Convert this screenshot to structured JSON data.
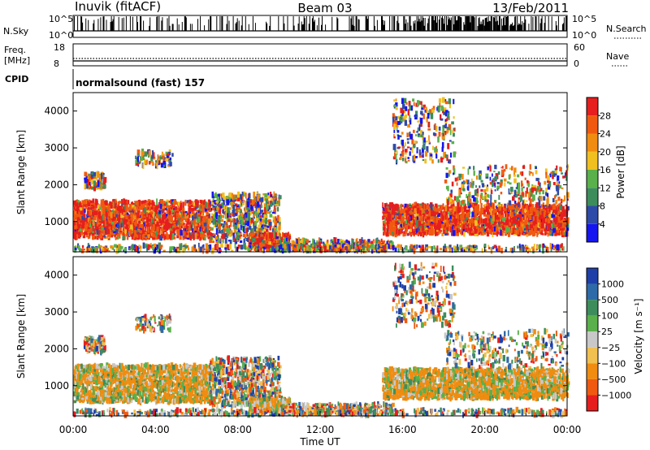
{
  "header": {
    "station": "Inuvik (fitACF)",
    "beam": "Beam 03",
    "date": "13/Feb/2011"
  },
  "side_labels": {
    "nsky": "N.Sky",
    "nsearch": "N.Search",
    "freq_line1": "Freq.",
    "freq_line2": "[MHz]",
    "nave": "Nave",
    "cpid": "CPID"
  },
  "cpid_value": "normalsound (fast) 157",
  "nsky_ticks": [
    "10^5",
    "10^0"
  ],
  "freq_ticks": [
    "18",
    "8"
  ],
  "nave_ticks": [
    "60",
    "0"
  ],
  "colors": {
    "power": [
      "#1515f0",
      "#2e4aa8",
      "#3d8d5c",
      "#5ab04b",
      "#f0c020",
      "#f08c10",
      "#f05a10",
      "#e61e1e"
    ],
    "velocity": [
      "#e61e1e",
      "#f05a10",
      "#f08c10",
      "#f0c050",
      "#c8c8c8",
      "#5ab04b",
      "#3d8d5c",
      "#2e6aa8",
      "#1f3fa8"
    ]
  },
  "chart_data": [
    {
      "type": "heatmap",
      "quantity": "Power",
      "xlabel": "",
      "ylabel": "Slant Range [km]",
      "xlim_hours": [
        0,
        24
      ],
      "ylim_km": [
        180,
        4500
      ],
      "y_ticks": [
        "1000",
        "2000",
        "3000",
        "4000"
      ],
      "colorbar": {
        "title": "Power [dB]",
        "range": [
          0,
          32
        ],
        "ticks": [
          "4",
          "8",
          "12",
          "16",
          "20",
          "24",
          "28"
        ]
      }
    },
    {
      "type": "heatmap",
      "quantity": "Velocity",
      "xlabel": "Time UT",
      "ylabel": "Slant Range [km]",
      "xlim_hours": [
        0,
        24
      ],
      "ylim_km": [
        180,
        4500
      ],
      "x_ticks": [
        "00:00",
        "04:00",
        "08:00",
        "12:00",
        "16:00",
        "20:00",
        "00:00"
      ],
      "y_ticks": [
        "1000",
        "2000",
        "3000",
        "4000"
      ],
      "colorbar": {
        "title": "Velocity [m s⁻¹]",
        "ticks": [
          "1000",
          "500",
          "100",
          "25",
          "−25",
          "−100",
          "−500",
          "−1000"
        ]
      }
    }
  ]
}
